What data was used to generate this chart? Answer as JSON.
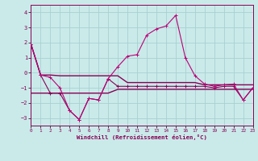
{
  "xlabel": "Windchill (Refroidissement éolien,°C)",
  "xlim": [
    0,
    23
  ],
  "ylim": [
    -3.5,
    4.5
  ],
  "yticks": [
    -3,
    -2,
    -1,
    0,
    1,
    2,
    3,
    4
  ],
  "xticks": [
    0,
    1,
    2,
    3,
    4,
    5,
    6,
    7,
    8,
    9,
    10,
    11,
    12,
    13,
    14,
    15,
    16,
    17,
    18,
    19,
    20,
    21,
    22,
    23
  ],
  "bg_color": "#caeaea",
  "grid_color": "#a8d0d0",
  "color_main": "#bb0077",
  "color_flat": "#880055",
  "line1": [
    1.9,
    -0.15,
    -0.3,
    -1.0,
    -2.5,
    -3.1,
    -1.7,
    -1.8,
    -0.4,
    0.4,
    1.1,
    1.2,
    2.5,
    2.9,
    3.1,
    3.8,
    1.0,
    -0.2,
    -0.75,
    -0.9,
    -0.8,
    -0.75,
    -1.8,
    -1.0
  ],
  "line2": [
    1.9,
    -0.15,
    -0.15,
    -0.2,
    -0.2,
    -0.2,
    -0.2,
    -0.2,
    -0.2,
    -0.2,
    -0.65,
    -0.65,
    -0.65,
    -0.65,
    -0.65,
    -0.65,
    -0.65,
    -0.65,
    -0.8,
    -0.8,
    -0.8,
    -0.8,
    -0.8,
    -0.8
  ],
  "line3": [
    -1.35,
    -1.35,
    -1.35,
    -1.35,
    -1.35,
    -1.35,
    -1.35,
    -1.35,
    -1.35,
    -1.1,
    -1.1,
    -1.1,
    -1.1,
    -1.1,
    -1.1,
    -1.1,
    -1.1,
    -1.1,
    -1.1,
    -1.1,
    -1.1,
    -1.1,
    -1.1,
    -1.1
  ],
  "line4": [
    1.9,
    -0.15,
    -1.35,
    -1.35,
    -2.5,
    -3.1,
    -1.7,
    -1.8,
    -0.4,
    -0.9,
    -0.9,
    -0.9,
    -0.9,
    -0.9,
    -0.9,
    -0.9,
    -0.9,
    -0.9,
    -0.9,
    -1.0,
    -0.9,
    -0.9,
    -1.8,
    -1.0
  ]
}
